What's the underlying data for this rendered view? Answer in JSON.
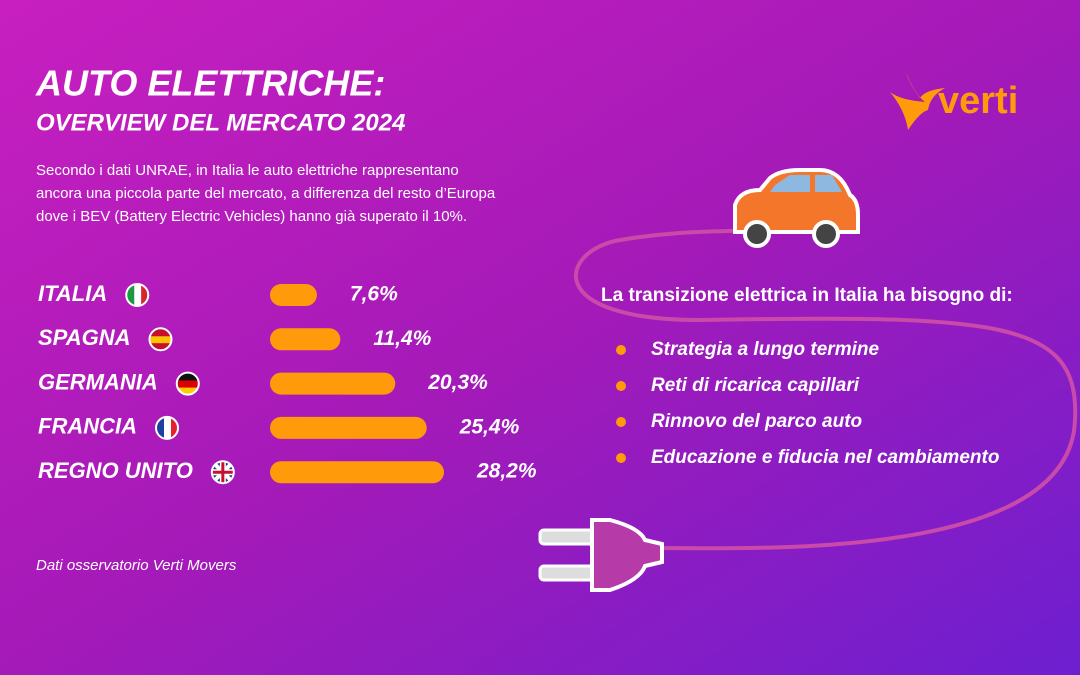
{
  "chart_data": {
    "type": "bar",
    "orientation": "horizontal",
    "title": "AUTO ELETTRICHE:",
    "subtitle": "OVERVIEW DEL MERCATO 2024",
    "intro": [
      "Secondo i dati UNRAE, in Italia le auto elettriche rappresentano",
      "ancora una piccola parte del mercato, a differenza del resto d’Europa",
      "dove i BEV (Battery Electric Vehicles) hanno già superato il 10%."
    ],
    "categories": [
      "ITALIA",
      "SPAGNA",
      "GERMANIA",
      "FRANCIA",
      "REGNO UNITO"
    ],
    "values": [
      7.6,
      11.4,
      20.3,
      25.4,
      28.2
    ],
    "value_labels": [
      "7,6%",
      "11,4%",
      "20,3%",
      "25,4%",
      "28,2%"
    ],
    "color": "#ff9a0a",
    "source": "Dati osservatorio Verti Movers"
  },
  "logo": "verti",
  "needs": {
    "heading": "La transizione elettrica in Italia ha bisogno di:",
    "items": [
      "Strategia a lungo termine",
      "Reti di ricarica capillari",
      "Rinnovo del parco auto",
      "Educazione e fiducia nel cambiamento"
    ]
  }
}
